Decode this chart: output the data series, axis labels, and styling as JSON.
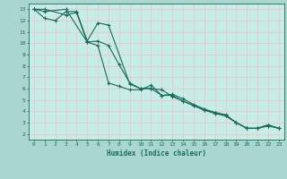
{
  "xlabel": "Humidex (Indice chaleur)",
  "background_color": "#aad6d0",
  "plot_bg_color": "#c8ede8",
  "grid_color": "#e8c8c8",
  "line_color": "#1a6b5a",
  "xlim": [
    -0.5,
    23.5
  ],
  "ylim": [
    1.5,
    13.5
  ],
  "xticks": [
    0,
    1,
    2,
    3,
    4,
    5,
    6,
    7,
    8,
    9,
    10,
    11,
    12,
    13,
    14,
    15,
    16,
    17,
    18,
    19,
    20,
    21,
    22,
    23
  ],
  "yticks": [
    2,
    3,
    4,
    5,
    6,
    7,
    8,
    9,
    10,
    11,
    12,
    13
  ],
  "line1_x": [
    0,
    1,
    3,
    4,
    5,
    6,
    7,
    8,
    9,
    10,
    11,
    12,
    13,
    14,
    15,
    16,
    17,
    18,
    19,
    20,
    21,
    22,
    23
  ],
  "line1_y": [
    13,
    13,
    12.5,
    12.7,
    10.1,
    10.2,
    9.8,
    8.1,
    6.5,
    6.0,
    6.0,
    5.9,
    5.3,
    4.9,
    4.5,
    4.1,
    3.8,
    3.6,
    3.0,
    2.5,
    2.5,
    2.7,
    2.5
  ],
  "line2_x": [
    0,
    1,
    2,
    3,
    4,
    5,
    6,
    7,
    9,
    10,
    11,
    12,
    13,
    14,
    15,
    16,
    17,
    18,
    19,
    20,
    21,
    22,
    23
  ],
  "line2_y": [
    13,
    12.2,
    12.0,
    12.8,
    12.8,
    10.2,
    11.8,
    11.6,
    6.4,
    6.0,
    6.0,
    5.4,
    5.4,
    4.9,
    4.5,
    4.1,
    3.9,
    3.7,
    3.0,
    2.5,
    2.5,
    2.8,
    2.5
  ],
  "line3_x": [
    0,
    1,
    3,
    5,
    6,
    7,
    8,
    9,
    10,
    11,
    12,
    13,
    14,
    15,
    16,
    17,
    18,
    19,
    20,
    21,
    22,
    23
  ],
  "line3_y": [
    13,
    12.8,
    13.0,
    10.1,
    9.8,
    6.5,
    6.2,
    5.9,
    5.9,
    6.3,
    5.4,
    5.5,
    5.1,
    4.6,
    4.2,
    3.9,
    3.6,
    3.0,
    2.5,
    2.5,
    2.8,
    2.5
  ]
}
